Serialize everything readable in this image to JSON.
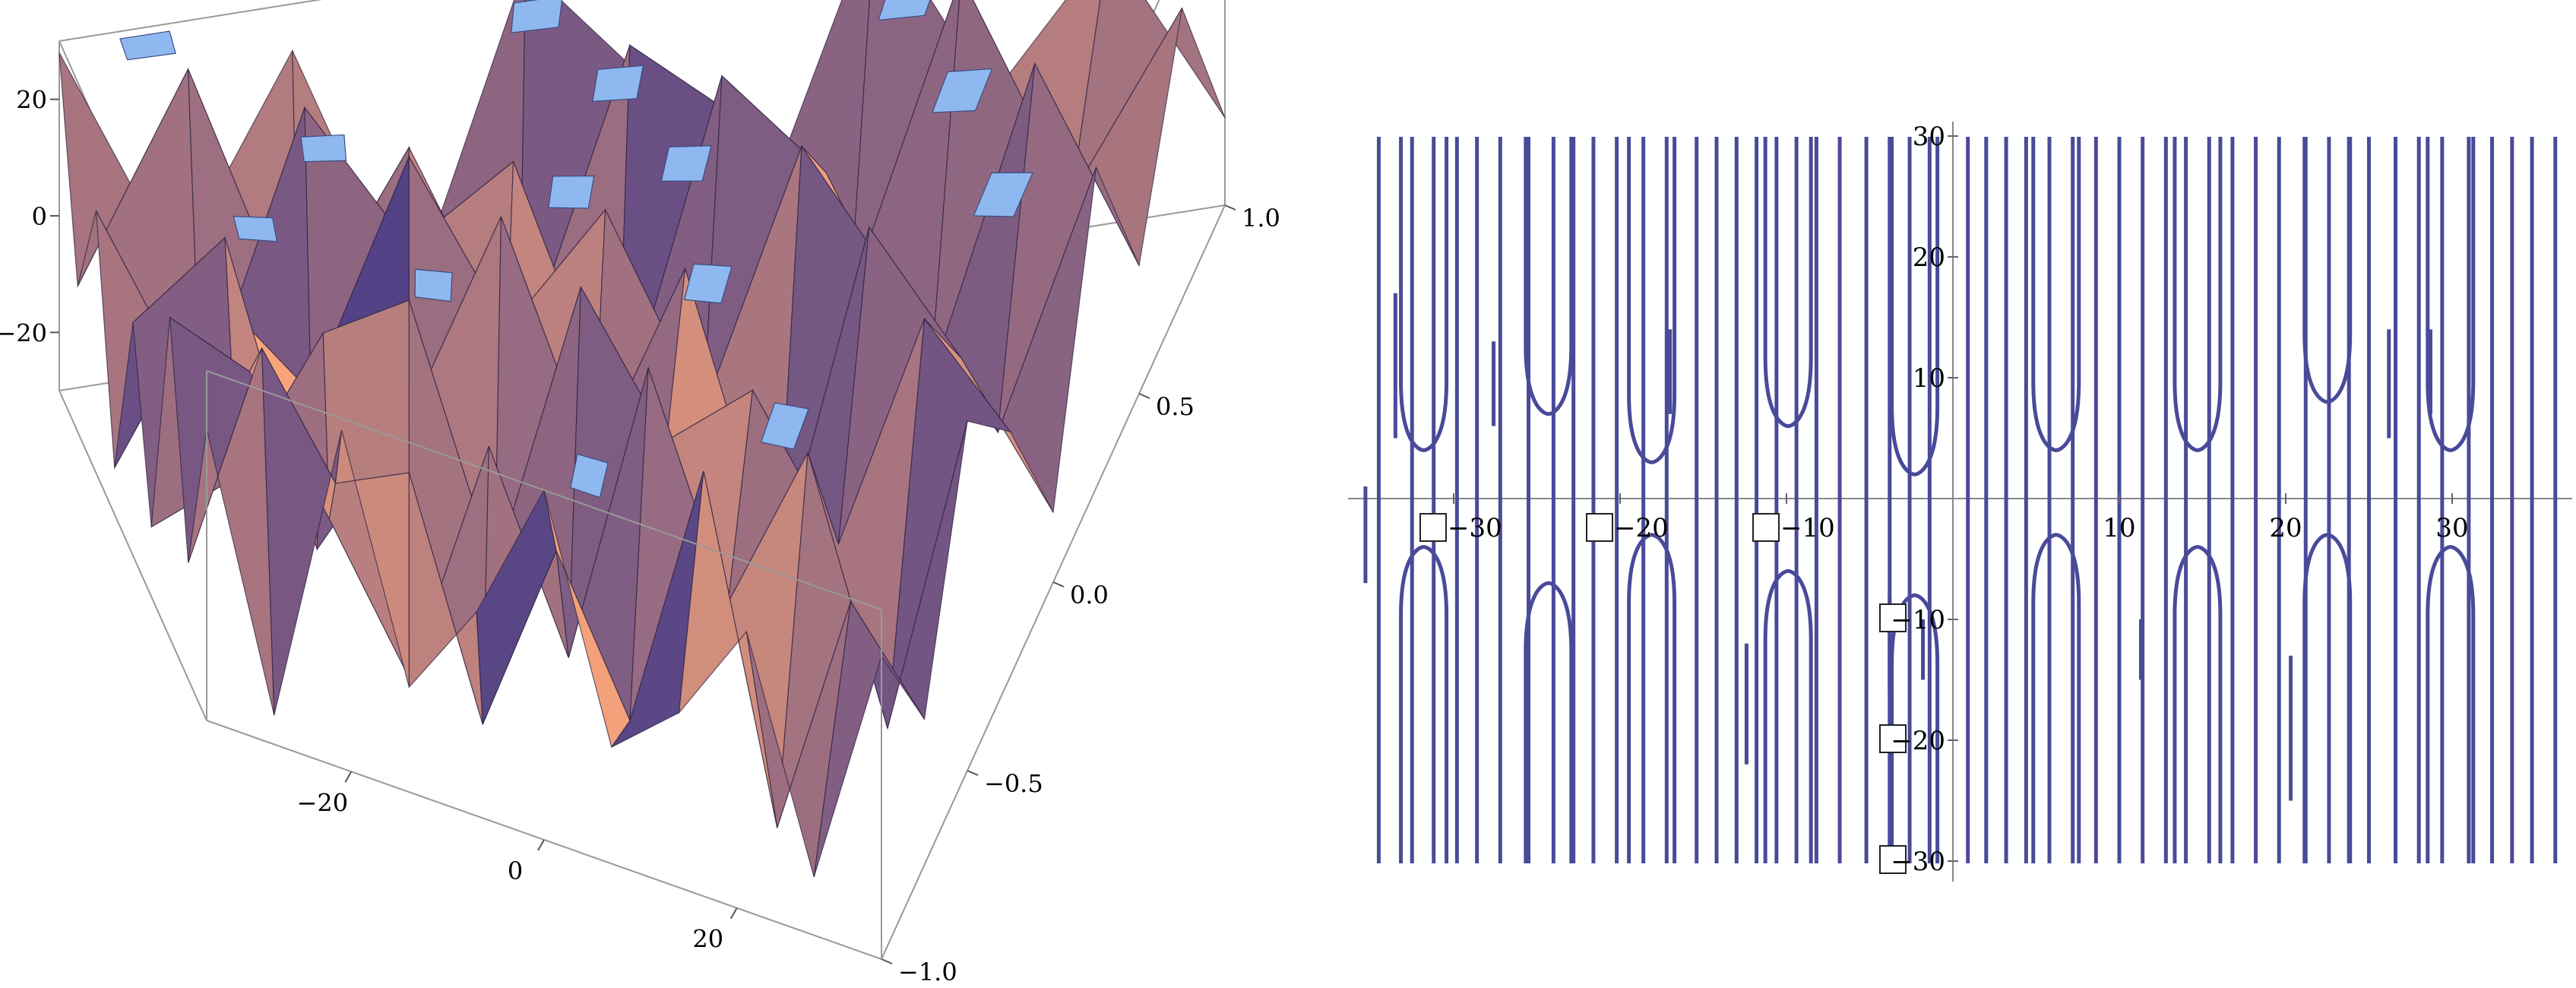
{
  "chart_data": [
    {
      "type": "surface3d",
      "title": "",
      "xlabel": "",
      "ylabel": "",
      "zlabel": "",
      "x_ticks": [
        "−20",
        "0",
        "20"
      ],
      "x_tick_values": [
        -20,
        0,
        20
      ],
      "y_ticks": [
        "−1.0",
        "−0.5",
        "0.0",
        "0.5",
        "1.0"
      ],
      "y_tick_values": [
        -1.0,
        -0.5,
        0.0,
        0.5,
        1.0
      ],
      "z_ticks": [
        "−20",
        "0",
        "20"
      ],
      "z_tick_values": [
        -20,
        0,
        20
      ],
      "xlim": [
        -35,
        35
      ],
      "ylim": [
        -1,
        1
      ],
      "zlim": [
        -30,
        30
      ],
      "colors": {
        "light": "#f7a47a",
        "dark": "#4a3d86",
        "cap": "#8fb8f0",
        "box": "#999999"
      },
      "surface_samples": {
        "rows_y": [
          1.0,
          0.75,
          0.5,
          0.25,
          0.0,
          -0.25,
          -0.5,
          -0.75,
          -1.0
        ],
        "x": [
          -35,
          -28,
          -21,
          -14,
          -7,
          0,
          7,
          14,
          21,
          28,
          35
        ],
        "z": [
          [
            28,
            -12,
            22,
            -25,
            30,
            8,
            -20,
            30,
            -5,
            18,
            -15
          ],
          [
            -5,
            30,
            -18,
            12,
            -28,
            25,
            10,
            -22,
            30,
            -10,
            20
          ],
          [
            15,
            -20,
            30,
            5,
            18,
            -30,
            30,
            12,
            -25,
            28,
            -8
          ],
          [
            -22,
            8,
            -10,
            30,
            0,
            20,
            -15,
            30,
            5,
            -20,
            25
          ],
          [
            10,
            25,
            -28,
            -5,
            30,
            -12,
            22,
            -30,
            30,
            8,
            -18
          ],
          [
            -18,
            -8,
            18,
            25,
            -20,
            30,
            5,
            15,
            -10,
            30,
            12
          ],
          [
            25,
            18,
            -5,
            -30,
            12,
            -22,
            30,
            -8,
            20,
            -25,
            30
          ],
          [
            -10,
            30,
            10,
            15,
            -25,
            8,
            -18,
            28,
            -30,
            12,
            -5
          ],
          [
            20,
            -25,
            28,
            -12,
            5,
            30,
            -10,
            0,
            18,
            -20,
            22
          ]
        ]
      },
      "caps": [
        {
          "x": 14,
          "y": 1.0
        },
        {
          "x": 18,
          "y": 0.7
        },
        {
          "x": 24,
          "y": 0.4
        },
        {
          "x": -6,
          "y": 0.8
        },
        {
          "x": -20,
          "y": 0.3
        },
        {
          "x": 28,
          "y": 0.9
        },
        {
          "x": 6,
          "y": 0.2
        },
        {
          "x": -12,
          "y": -0.3
        },
        {
          "x": 20,
          "y": -0.6
        },
        {
          "x": 0,
          "y": 0.5
        },
        {
          "x": -26,
          "y": -0.1
        },
        {
          "x": 10,
          "y": -0.2
        },
        {
          "x": 30,
          "y": 0.1
        },
        {
          "x": -30,
          "y": 0.9
        },
        {
          "x": 4,
          "y": -0.9
        },
        {
          "x": -2,
          "y": 0.1
        }
      ]
    },
    {
      "type": "line",
      "title": "",
      "xlabel": "",
      "ylabel": "",
      "x_ticks": [
        "−30",
        "−20",
        "−10",
        "10",
        "20",
        "30"
      ],
      "x_tick_values": [
        -30,
        -20,
        -10,
        10,
        20,
        30
      ],
      "y_ticks": [
        "30",
        "20",
        "10",
        "−10",
        "−20",
        "−30"
      ],
      "y_tick_values": [
        30,
        20,
        10,
        -10,
        -20,
        -30
      ],
      "xlim": [
        -35,
        37
      ],
      "ylim": [
        -30,
        30
      ],
      "line_color": "#4a4a9a",
      "asymptotes_x": [
        -34.5,
        -32.5,
        -31.2,
        -29.8,
        -28.6,
        -27.2,
        -25.5,
        -24.0,
        -22.8,
        -21.6,
        -20.2,
        -18.6,
        -17.2,
        -15.4,
        -14.2,
        -13.0,
        -11.8,
        -10.6,
        -9.4,
        -8.2,
        -6.8,
        -5.2,
        -3.8,
        -2.6,
        -1.4,
        0.9,
        2.0,
        3.2,
        4.4,
        5.8,
        7.2,
        8.6,
        10.0,
        11.4,
        12.8,
        14.0,
        15.4,
        16.8,
        18.2,
        19.6,
        21.2,
        22.6,
        23.8,
        25.0,
        26.6,
        28.0,
        29.4,
        31.0,
        32.4,
        33.6,
        34.8,
        36.2
      ],
      "hyperbola_pairs": [
        {
          "x": -31.8,
          "y_upper": 4,
          "y_lower": -4
        },
        {
          "x": -24.3,
          "y_upper": 7,
          "y_lower": -7
        },
        {
          "x": -18.1,
          "y_upper": 3,
          "y_lower": -3
        },
        {
          "x": -9.9,
          "y_upper": 6,
          "y_lower": -6
        },
        {
          "x": -2.3,
          "y_upper": 2,
          "y_lower": -8
        },
        {
          "x": 6.2,
          "y_upper": 4,
          "y_lower": -3
        },
        {
          "x": 14.7,
          "y_upper": 4,
          "y_lower": -4
        },
        {
          "x": 22.5,
          "y_upper": 8,
          "y_lower": -3
        },
        {
          "x": 29.9,
          "y_upper": 4,
          "y_lower": -4
        }
      ],
      "short_segments": [
        {
          "x": -35.3,
          "y_from": 1,
          "y_to": -7
        },
        {
          "x": -33.5,
          "y_from": 17,
          "y_to": 5
        },
        {
          "x": -27.6,
          "y_from": 13,
          "y_to": 6
        },
        {
          "x": -17.0,
          "y_from": 14,
          "y_to": 7
        },
        {
          "x": -12.4,
          "y_from": -12,
          "y_to": -22
        },
        {
          "x": -3.8,
          "y_from": -8,
          "y_to": -16
        },
        {
          "x": -1.8,
          "y_from": -10,
          "y_to": -15
        },
        {
          "x": 11.3,
          "y_from": -10,
          "y_to": -15
        },
        {
          "x": 26.2,
          "y_from": 14,
          "y_to": 5
        },
        {
          "x": 28.7,
          "y_from": 14,
          "y_to": 7
        },
        {
          "x": 20.3,
          "y_from": -13,
          "y_to": -25
        }
      ]
    }
  ]
}
